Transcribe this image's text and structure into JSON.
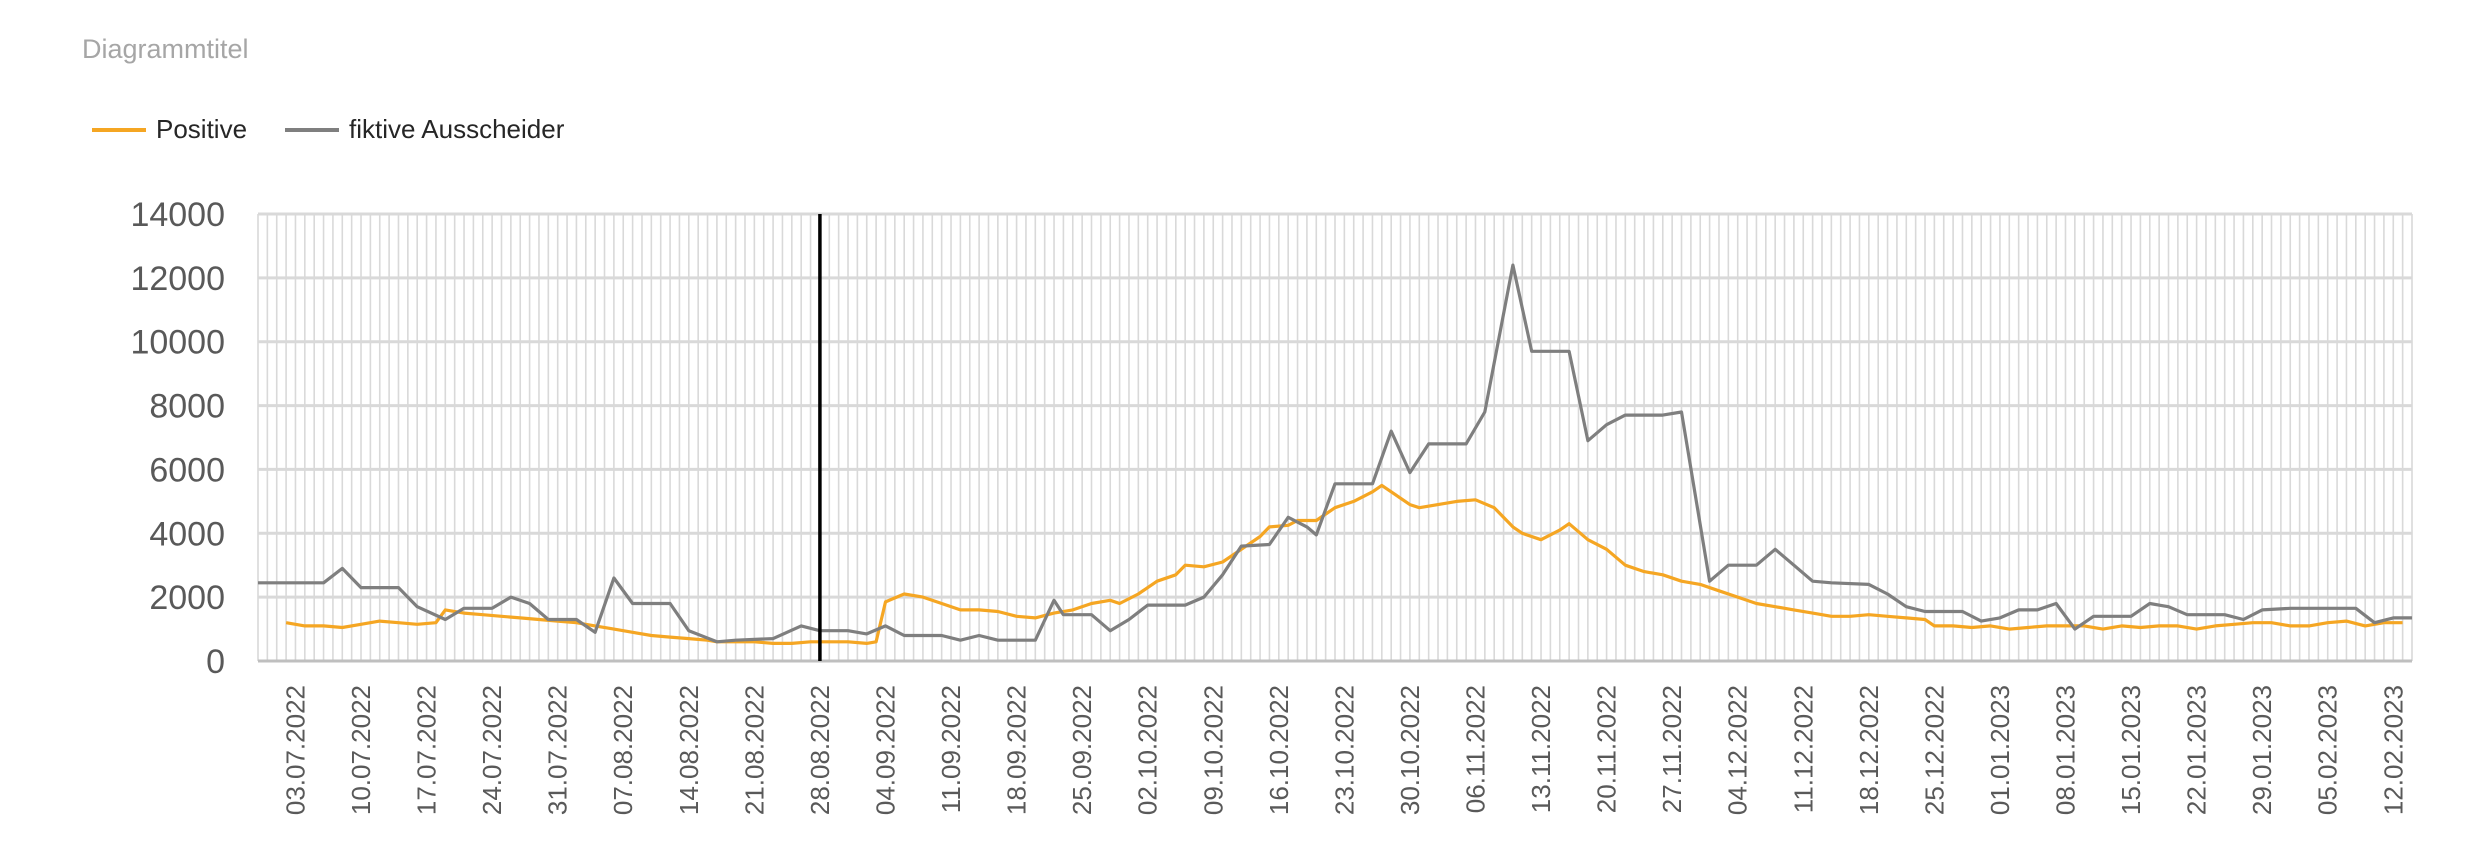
{
  "title": "Diagrammtitel",
  "legend": [
    {
      "name": "Positive",
      "color": "#f5a623"
    },
    {
      "name": "fiktive  Ausscheider",
      "color": "#7f7f7f"
    }
  ],
  "chart_data": {
    "type": "line",
    "title": "Diagrammtitel",
    "xlabel": "",
    "ylabel": "",
    "ylim": [
      0,
      14000
    ],
    "y_ticks": [
      0,
      2000,
      4000,
      6000,
      8000,
      10000,
      12000,
      14000
    ],
    "x_start": "2022-06-29",
    "x_end": "2023-02-14",
    "x_tick_labels": [
      "03.07.2022",
      "10.07.2022",
      "17.07.2022",
      "24.07.2022",
      "31.07.2022",
      "07.08.2022",
      "14.08.2022",
      "21.08.2022",
      "28.08.2022",
      "04.09.2022",
      "11.09.2022",
      "18.09.2022",
      "25.09.2022",
      "02.10.2022",
      "09.10.2022",
      "16.10.2022",
      "23.10.2022",
      "30.10.2022",
      "06.11.2022",
      "13.11.2022",
      "20.11.2022",
      "27.11.2022",
      "04.12.2022",
      "11.12.2022",
      "18.12.2022",
      "25.12.2022",
      "01.01.2023",
      "08.01.2023",
      "15.01.2023",
      "22.01.2023",
      "29.01.2023",
      "05.02.2023",
      "12.02.2023"
    ],
    "grid": "vertical per day, horizontal per 2000",
    "legend_position": "top-left",
    "marker_line": "2022-08-28",
    "series": [
      {
        "name": "Positive",
        "color": "#f5a623",
        "points": [
          [
            "2022-07-02",
            1200
          ],
          [
            "2022-07-04",
            1100
          ],
          [
            "2022-07-06",
            1100
          ],
          [
            "2022-07-08",
            1050
          ],
          [
            "2022-07-10",
            1150
          ],
          [
            "2022-07-12",
            1250
          ],
          [
            "2022-07-14",
            1200
          ],
          [
            "2022-07-16",
            1150
          ],
          [
            "2022-07-18",
            1200
          ],
          [
            "2022-07-19",
            1600
          ],
          [
            "2022-07-21",
            1500
          ],
          [
            "2022-07-23",
            1450
          ],
          [
            "2022-07-25",
            1400
          ],
          [
            "2022-07-27",
            1350
          ],
          [
            "2022-07-29",
            1300
          ],
          [
            "2022-07-31",
            1250
          ],
          [
            "2022-08-02",
            1200
          ],
          [
            "2022-08-04",
            1100
          ],
          [
            "2022-08-06",
            1000
          ],
          [
            "2022-08-08",
            900
          ],
          [
            "2022-08-10",
            800
          ],
          [
            "2022-08-12",
            750
          ],
          [
            "2022-08-14",
            700
          ],
          [
            "2022-08-16",
            650
          ],
          [
            "2022-08-17",
            600
          ],
          [
            "2022-08-19",
            600
          ],
          [
            "2022-08-21",
            600
          ],
          [
            "2022-08-23",
            550
          ],
          [
            "2022-08-25",
            550
          ],
          [
            "2022-08-27",
            600
          ],
          [
            "2022-08-29",
            600
          ],
          [
            "2022-08-31",
            600
          ],
          [
            "2022-09-02",
            550
          ],
          [
            "2022-09-03",
            600
          ],
          [
            "2022-09-04",
            1850
          ],
          [
            "2022-09-06",
            2100
          ],
          [
            "2022-09-08",
            2000
          ],
          [
            "2022-09-10",
            1800
          ],
          [
            "2022-09-12",
            1600
          ],
          [
            "2022-09-14",
            1600
          ],
          [
            "2022-09-16",
            1550
          ],
          [
            "2022-09-18",
            1400
          ],
          [
            "2022-09-20",
            1350
          ],
          [
            "2022-09-22",
            1500
          ],
          [
            "2022-09-24",
            1600
          ],
          [
            "2022-09-26",
            1800
          ],
          [
            "2022-09-28",
            1900
          ],
          [
            "2022-09-29",
            1800
          ],
          [
            "2022-10-01",
            2100
          ],
          [
            "2022-10-03",
            2500
          ],
          [
            "2022-10-05",
            2700
          ],
          [
            "2022-10-06",
            3000
          ],
          [
            "2022-10-08",
            2950
          ],
          [
            "2022-10-10",
            3100
          ],
          [
            "2022-10-12",
            3500
          ],
          [
            "2022-10-14",
            3900
          ],
          [
            "2022-10-15",
            4200
          ],
          [
            "2022-10-17",
            4250
          ],
          [
            "2022-10-18",
            4400
          ],
          [
            "2022-10-20",
            4400
          ],
          [
            "2022-10-22",
            4800
          ],
          [
            "2022-10-24",
            5000
          ],
          [
            "2022-10-26",
            5300
          ],
          [
            "2022-10-27",
            5500
          ],
          [
            "2022-10-28",
            5300
          ],
          [
            "2022-10-30",
            4900
          ],
          [
            "2022-10-31",
            4800
          ],
          [
            "2022-11-02",
            4900
          ],
          [
            "2022-11-04",
            5000
          ],
          [
            "2022-11-06",
            5050
          ],
          [
            "2022-11-08",
            4800
          ],
          [
            "2022-11-10",
            4200
          ],
          [
            "2022-11-11",
            4000
          ],
          [
            "2022-11-13",
            3800
          ],
          [
            "2022-11-15",
            4100
          ],
          [
            "2022-11-16",
            4300
          ],
          [
            "2022-11-18",
            3800
          ],
          [
            "2022-11-20",
            3500
          ],
          [
            "2022-11-22",
            3000
          ],
          [
            "2022-11-24",
            2800
          ],
          [
            "2022-11-26",
            2700
          ],
          [
            "2022-11-28",
            2500
          ],
          [
            "2022-11-30",
            2400
          ],
          [
            "2022-12-02",
            2200
          ],
          [
            "2022-12-04",
            2000
          ],
          [
            "2022-12-06",
            1800
          ],
          [
            "2022-12-08",
            1700
          ],
          [
            "2022-12-10",
            1600
          ],
          [
            "2022-12-12",
            1500
          ],
          [
            "2022-12-14",
            1400
          ],
          [
            "2022-12-16",
            1400
          ],
          [
            "2022-12-18",
            1450
          ],
          [
            "2022-12-20",
            1400
          ],
          [
            "2022-12-22",
            1350
          ],
          [
            "2022-12-24",
            1300
          ],
          [
            "2022-12-25",
            1100
          ],
          [
            "2022-12-27",
            1100
          ],
          [
            "2022-12-29",
            1050
          ],
          [
            "2022-12-31",
            1100
          ],
          [
            "2023-01-02",
            1000
          ],
          [
            "2023-01-04",
            1050
          ],
          [
            "2023-01-06",
            1100
          ],
          [
            "2023-01-08",
            1100
          ],
          [
            "2023-01-10",
            1100
          ],
          [
            "2023-01-12",
            1000
          ],
          [
            "2023-01-14",
            1100
          ],
          [
            "2023-01-16",
            1050
          ],
          [
            "2023-01-18",
            1100
          ],
          [
            "2023-01-20",
            1100
          ],
          [
            "2023-01-22",
            1000
          ],
          [
            "2023-01-24",
            1100
          ],
          [
            "2023-01-26",
            1150
          ],
          [
            "2023-01-28",
            1200
          ],
          [
            "2023-01-30",
            1200
          ],
          [
            "2023-02-01",
            1100
          ],
          [
            "2023-02-03",
            1100
          ],
          [
            "2023-02-05",
            1200
          ],
          [
            "2023-02-07",
            1250
          ],
          [
            "2023-02-09",
            1100
          ],
          [
            "2023-02-11",
            1200
          ],
          [
            "2023-02-13",
            1200
          ]
        ]
      },
      {
        "name": "fiktive  Ausscheider",
        "color": "#7f7f7f",
        "points": [
          [
            "2022-06-29",
            2450
          ],
          [
            "2022-07-06",
            2450
          ],
          [
            "2022-07-08",
            2900
          ],
          [
            "2022-07-10",
            2300
          ],
          [
            "2022-07-14",
            2300
          ],
          [
            "2022-07-16",
            1700
          ],
          [
            "2022-07-19",
            1300
          ],
          [
            "2022-07-21",
            1650
          ],
          [
            "2022-07-24",
            1650
          ],
          [
            "2022-07-26",
            2000
          ],
          [
            "2022-07-28",
            1800
          ],
          [
            "2022-07-30",
            1300
          ],
          [
            "2022-08-02",
            1300
          ],
          [
            "2022-08-04",
            900
          ],
          [
            "2022-08-06",
            2600
          ],
          [
            "2022-08-08",
            1800
          ],
          [
            "2022-08-12",
            1800
          ],
          [
            "2022-08-14",
            950
          ],
          [
            "2022-08-17",
            600
          ],
          [
            "2022-08-19",
            650
          ],
          [
            "2022-08-23",
            700
          ],
          [
            "2022-08-26",
            1100
          ],
          [
            "2022-08-28",
            950
          ],
          [
            "2022-08-31",
            950
          ],
          [
            "2022-09-02",
            850
          ],
          [
            "2022-09-04",
            1100
          ],
          [
            "2022-09-06",
            800
          ],
          [
            "2022-09-10",
            800
          ],
          [
            "2022-09-12",
            650
          ],
          [
            "2022-09-14",
            800
          ],
          [
            "2022-09-16",
            650
          ],
          [
            "2022-09-20",
            650
          ],
          [
            "2022-09-22",
            1900
          ],
          [
            "2022-09-23",
            1450
          ],
          [
            "2022-09-26",
            1450
          ],
          [
            "2022-09-28",
            950
          ],
          [
            "2022-09-30",
            1300
          ],
          [
            "2022-10-02",
            1750
          ],
          [
            "2022-10-04",
            1750
          ],
          [
            "2022-10-06",
            1750
          ],
          [
            "2022-10-08",
            2000
          ],
          [
            "2022-10-10",
            2700
          ],
          [
            "2022-10-12",
            3600
          ],
          [
            "2022-10-15",
            3650
          ],
          [
            "2022-10-17",
            4500
          ],
          [
            "2022-10-19",
            4200
          ],
          [
            "2022-10-20",
            3950
          ],
          [
            "2022-10-22",
            5550
          ],
          [
            "2022-10-26",
            5550
          ],
          [
            "2022-10-28",
            7200
          ],
          [
            "2022-10-30",
            5900
          ],
          [
            "2022-11-01",
            6800
          ],
          [
            "2022-11-03",
            6800
          ],
          [
            "2022-11-05",
            6800
          ],
          [
            "2022-11-07",
            7800
          ],
          [
            "2022-11-10",
            12400
          ],
          [
            "2022-11-12",
            9700
          ],
          [
            "2022-11-16",
            9700
          ],
          [
            "2022-11-18",
            6900
          ],
          [
            "2022-11-20",
            7400
          ],
          [
            "2022-11-22",
            7700
          ],
          [
            "2022-11-26",
            7700
          ],
          [
            "2022-11-28",
            7800
          ],
          [
            "2022-12-01",
            2500
          ],
          [
            "2022-12-03",
            3000
          ],
          [
            "2022-12-06",
            3000
          ],
          [
            "2022-12-08",
            3500
          ],
          [
            "2022-12-10",
            3000
          ],
          [
            "2022-12-12",
            2500
          ],
          [
            "2022-12-14",
            2450
          ],
          [
            "2022-12-18",
            2400
          ],
          [
            "2022-12-20",
            2100
          ],
          [
            "2022-12-22",
            1700
          ],
          [
            "2022-12-24",
            1550
          ],
          [
            "2022-12-28",
            1550
          ],
          [
            "2022-12-30",
            1250
          ],
          [
            "2023-01-01",
            1350
          ],
          [
            "2023-01-03",
            1600
          ],
          [
            "2023-01-05",
            1600
          ],
          [
            "2023-01-07",
            1800
          ],
          [
            "2023-01-09",
            1000
          ],
          [
            "2023-01-11",
            1400
          ],
          [
            "2023-01-15",
            1400
          ],
          [
            "2023-01-17",
            1800
          ],
          [
            "2023-01-19",
            1700
          ],
          [
            "2023-01-21",
            1450
          ],
          [
            "2023-01-25",
            1450
          ],
          [
            "2023-01-27",
            1300
          ],
          [
            "2023-01-29",
            1600
          ],
          [
            "2023-02-01",
            1650
          ],
          [
            "2023-02-04",
            1650
          ],
          [
            "2023-02-06",
            1650
          ],
          [
            "2023-02-08",
            1650
          ],
          [
            "2023-02-10",
            1200
          ],
          [
            "2023-02-12",
            1350
          ],
          [
            "2023-02-14",
            1350
          ]
        ]
      }
    ]
  }
}
